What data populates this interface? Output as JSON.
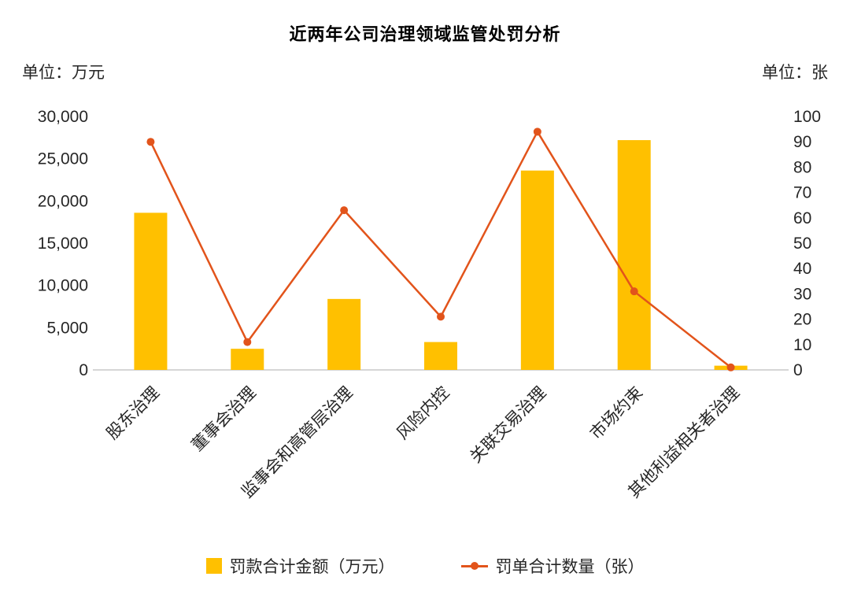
{
  "title": "近两年公司治理领域监管处罚分析",
  "left_axis": {
    "unit_label": "单位：万元",
    "min": 0,
    "max": 30000,
    "step": 5000,
    "tick_labels": [
      "0",
      "5,000",
      "10,000",
      "15,000",
      "20,000",
      "25,000",
      "30,000"
    ]
  },
  "right_axis": {
    "unit_label": "单位：张",
    "min": 0,
    "max": 100,
    "step": 10,
    "tick_labels": [
      "0",
      "10",
      "20",
      "30",
      "40",
      "50",
      "60",
      "70",
      "80",
      "90",
      "100"
    ]
  },
  "chart_data": {
    "type": "bar+line",
    "title": "近两年公司治理领域监管处罚分析",
    "categories": [
      "股东治理",
      "董事会治理",
      "监事会和高管层治理",
      "风险内控",
      "关联交易治理",
      "市场约束",
      "其他利益相关者治理"
    ],
    "series": [
      {
        "name": "罚款合计金额（万元）",
        "type": "bar",
        "axis": "left",
        "color": "#FFC000",
        "values": [
          18600,
          2500,
          8400,
          3300,
          23600,
          27200,
          500
        ]
      },
      {
        "name": "罚单合计数量（张）",
        "type": "line",
        "axis": "right",
        "color": "#E2541B",
        "values": [
          90,
          11,
          63,
          21,
          94,
          31,
          1
        ]
      }
    ],
    "left_ylim": [
      0,
      30000
    ],
    "right_ylim": [
      0,
      100
    ],
    "grid": false,
    "legend_position": "bottom",
    "axis_line_color": "#c9c9c9",
    "tick_label_color": "#262626"
  }
}
